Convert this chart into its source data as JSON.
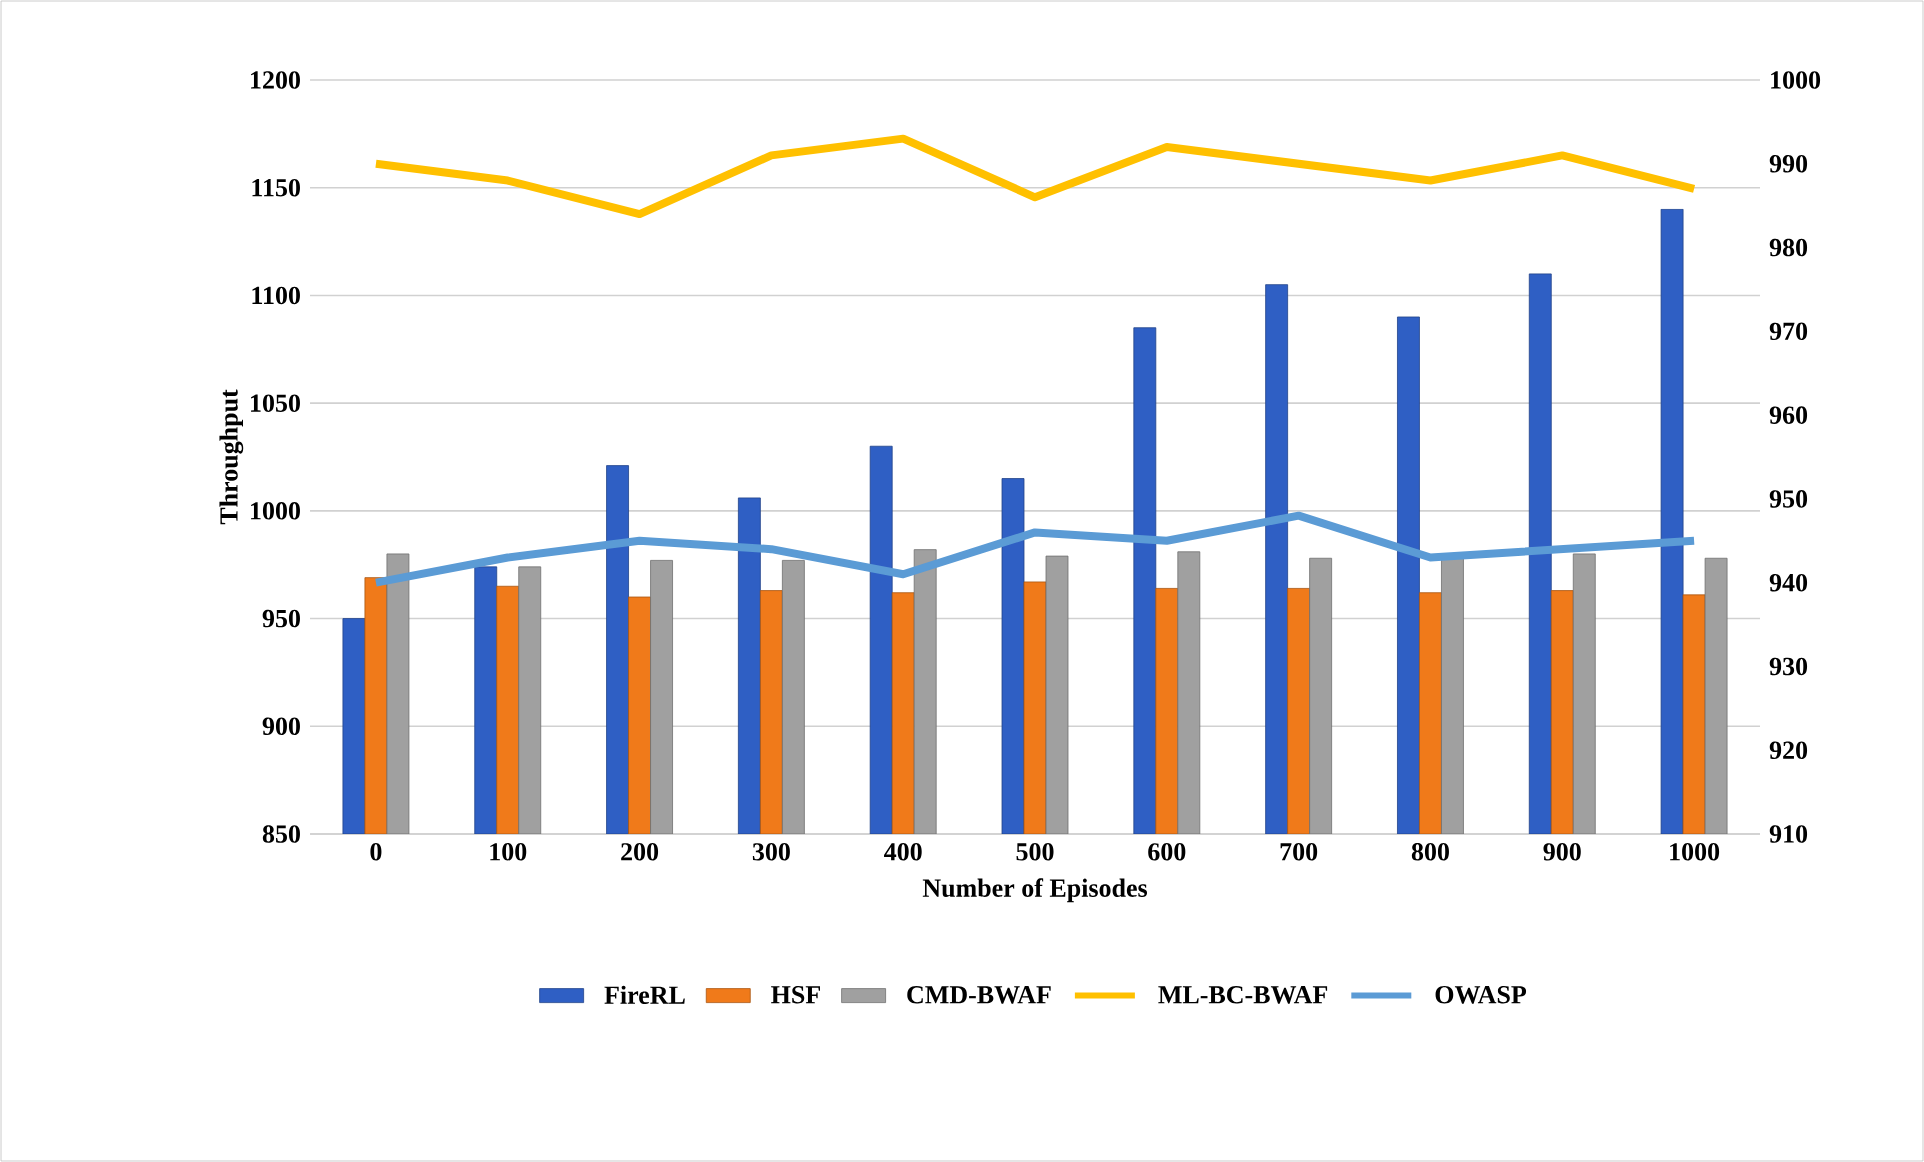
{
  "chart_data": {
    "type": "bar",
    "xlabel": "Number of Episodes",
    "ylabel": "Throughput",
    "categories": [
      "0",
      "100",
      "200",
      "300",
      "400",
      "500",
      "600",
      "700",
      "800",
      "900",
      "1000"
    ],
    "series": [
      {
        "name": "FireRL",
        "color": "#2f5fc4",
        "values": [
          950,
          974,
          1021,
          1006,
          1030,
          1015,
          1085,
          1105,
          1090,
          1110,
          1140
        ]
      },
      {
        "name": "HSF",
        "color": "#f07a1a",
        "values": [
          969,
          965,
          960,
          963,
          962,
          967,
          964,
          964,
          962,
          963,
          961
        ]
      },
      {
        "name": "CMD-BWAF",
        "color": "#a0a0a0",
        "values": [
          980,
          974,
          977,
          977,
          982,
          979,
          981,
          978,
          980,
          980,
          978
        ]
      },
      {
        "name": "ML-BC-BWAF",
        "type": "line",
        "axis": "y2",
        "color": "#ffc000",
        "values": [
          990,
          988,
          984,
          991,
          993,
          986,
          992,
          990,
          988,
          991,
          987
        ]
      },
      {
        "name": "OWASP",
        "type": "line",
        "axis": "y2",
        "color": "#5b9bd5",
        "values": [
          940,
          943,
          945,
          944,
          941,
          946,
          945,
          948,
          943,
          944,
          945
        ]
      }
    ],
    "ylim": [
      850,
      1200
    ],
    "yticks": [
      850,
      900,
      950,
      1000,
      1050,
      1100,
      1150,
      1200
    ],
    "y2lim": [
      910,
      1000
    ],
    "y2ticks": [
      910,
      920,
      930,
      940,
      950,
      960,
      970,
      980,
      990,
      1000
    ],
    "grid": "y",
    "legend": "bottom"
  }
}
